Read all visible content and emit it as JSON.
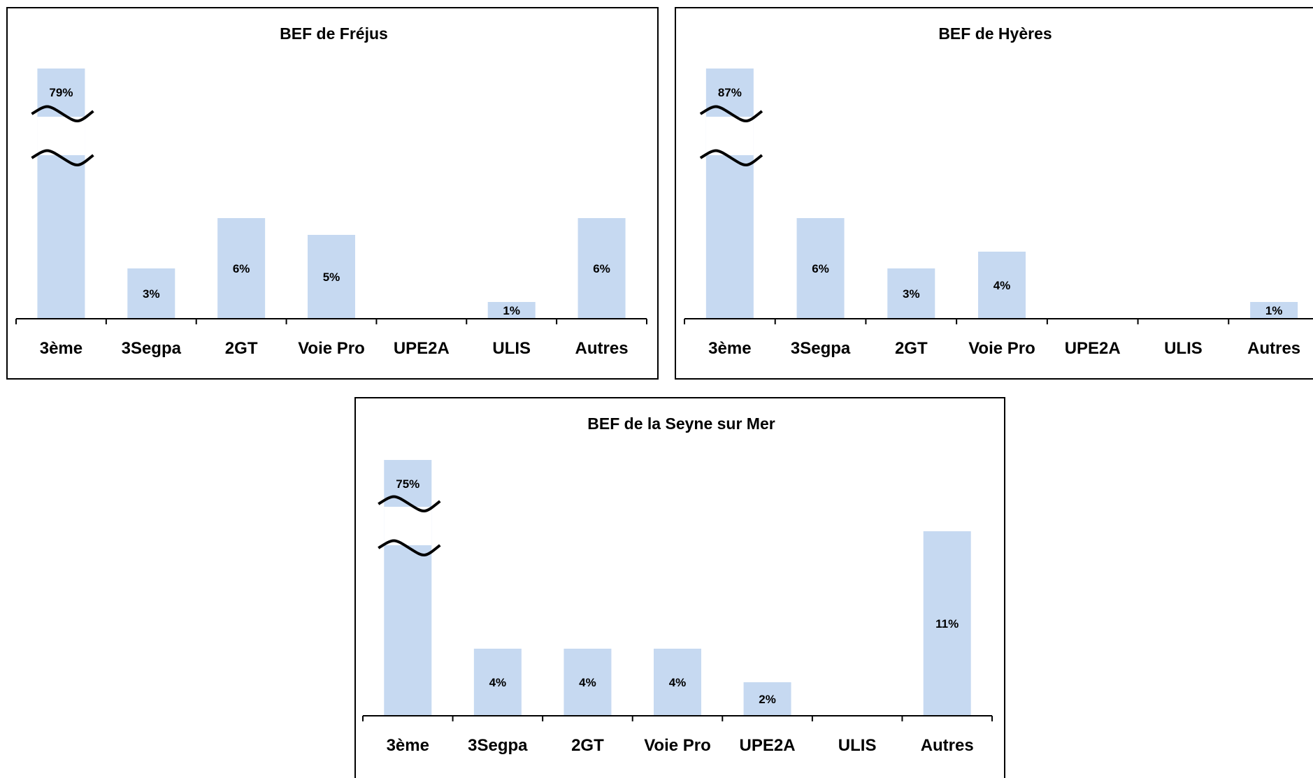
{
  "chart_data": [
    {
      "type": "bar",
      "title": "BEF de Fréjus",
      "categories": [
        "3ème",
        "3Segpa",
        "2GT",
        "Voie Pro",
        "UPE2A",
        "ULIS",
        "Autres"
      ],
      "values": [
        79,
        3,
        6,
        5,
        0,
        1,
        6
      ],
      "value_labels": [
        "79%",
        "3%",
        "6%",
        "5%",
        "",
        "1%",
        "6%"
      ],
      "axis_break": true,
      "bar_color": "#c6d9f1",
      "xlabel": "",
      "ylabel": "",
      "grid": false,
      "legend": "none"
    },
    {
      "type": "bar",
      "title": "BEF de Hyères",
      "categories": [
        "3ème",
        "3Segpa",
        "2GT",
        "Voie Pro",
        "UPE2A",
        "ULIS",
        "Autres"
      ],
      "values": [
        87,
        6,
        3,
        4,
        0,
        0,
        1
      ],
      "value_labels": [
        "87%",
        "6%",
        "3%",
        "4%",
        "",
        "",
        "1%"
      ],
      "axis_break": true,
      "bar_color": "#c6d9f1",
      "xlabel": "",
      "ylabel": "",
      "grid": false,
      "legend": "none"
    },
    {
      "type": "bar",
      "title": "BEF de la Seyne sur Mer",
      "categories": [
        "3ème",
        "3Segpa",
        "2GT",
        "Voie Pro",
        "UPE2A",
        "ULIS",
        "Autres"
      ],
      "values": [
        75,
        4,
        4,
        4,
        2,
        0,
        11
      ],
      "value_labels": [
        "75%",
        "4%",
        "4%",
        "4%",
        "2%",
        "",
        "11%"
      ],
      "axis_break": true,
      "bar_color": "#c6d9f1",
      "xlabel": "",
      "ylabel": "",
      "grid": false,
      "legend": "none"
    }
  ]
}
